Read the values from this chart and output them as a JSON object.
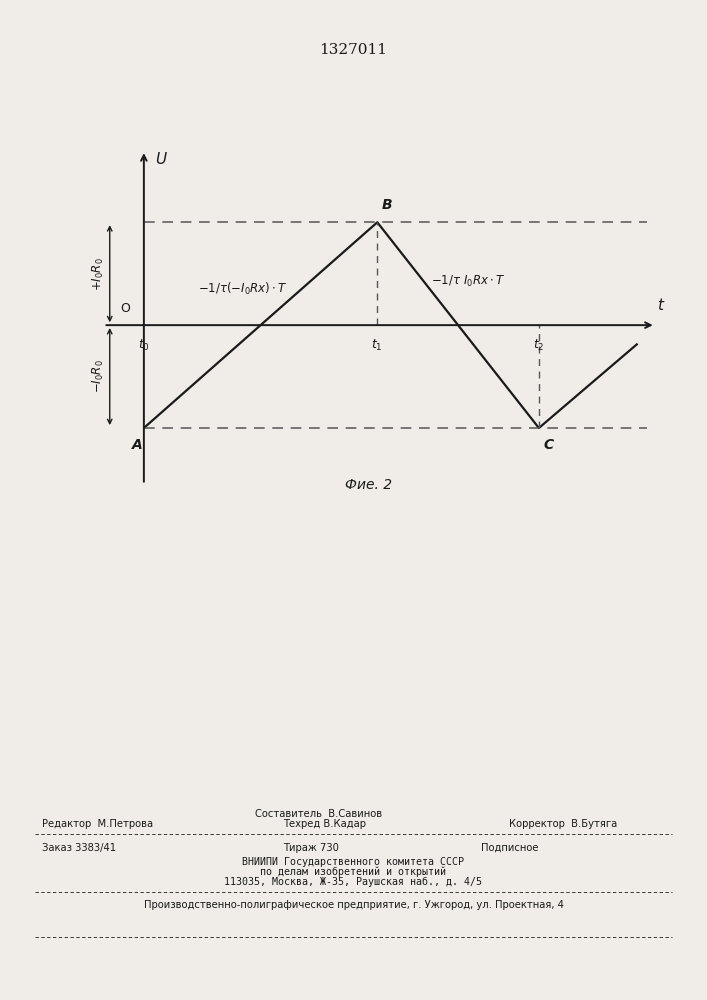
{
  "patent_number": "1327011",
  "fig_label": "Фие. 2",
  "background_color": "#f0ede8",
  "line_color": "#1a1a1a",
  "dash_color": "#555555",
  "footer_sestavitel": "Составитель  В.Савинов",
  "footer_redaktor": "Редактор  М.Петрова",
  "footer_tehred": "Техред В.Кадар",
  "footer_korrektor": "Корректор  В.Бутяга",
  "footer_zakaz": "Заказ 3383/41",
  "footer_tirazh": "Тираж 730",
  "footer_podpisnoe": "Подписное",
  "footer_vniipи": "ВНИИПИ Государственного комитета СССР",
  "footer_dela": "по делам изобретений и открытий",
  "footer_address": "113035, Москва, Ж-35, Раушская наб., д. 4/5",
  "footer_enterprise": "Производственно-полиграфическое предприятие, г. Ужгород, ул. Проектная, 4"
}
